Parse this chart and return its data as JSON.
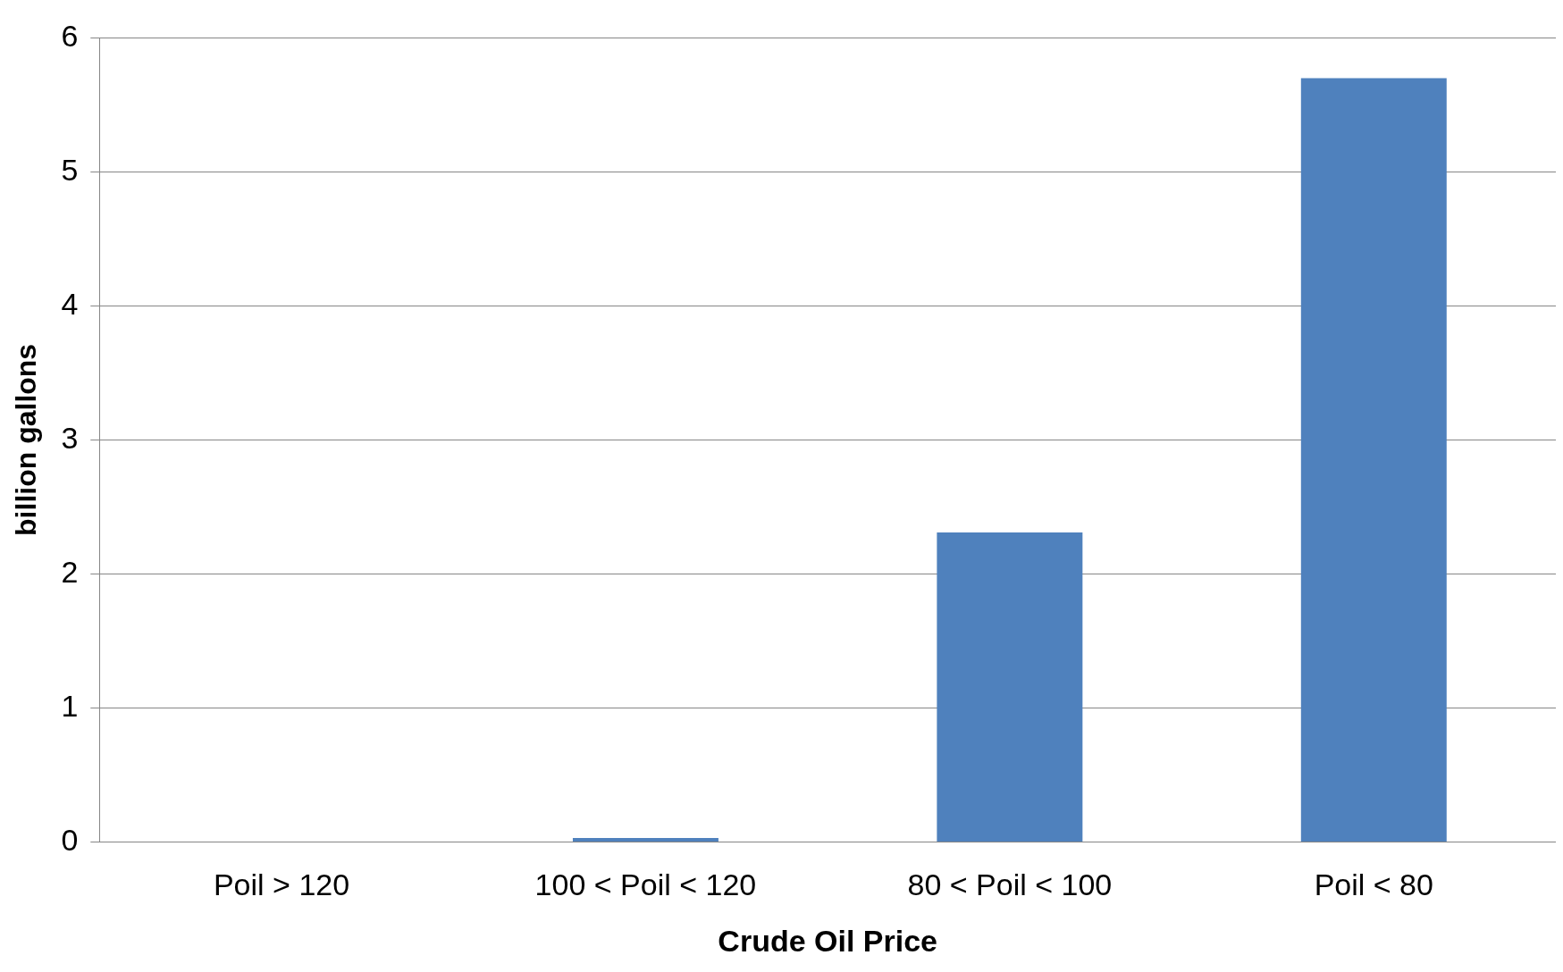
{
  "chart_data": {
    "type": "bar",
    "xlabel": "Crude Oil Price",
    "ylabel": "billion gallons",
    "categories": [
      "Poil > 120",
      "100 < Poil < 120",
      "80 < Poil < 100",
      "Poil < 80"
    ],
    "values": [
      0,
      0.03,
      2.31,
      5.7
    ],
    "color": "#4f81bd",
    "ylim": [
      0,
      6
    ],
    "yticks": [
      0,
      1,
      2,
      3,
      4,
      5,
      6
    ],
    "grid": "y",
    "legend": false
  }
}
